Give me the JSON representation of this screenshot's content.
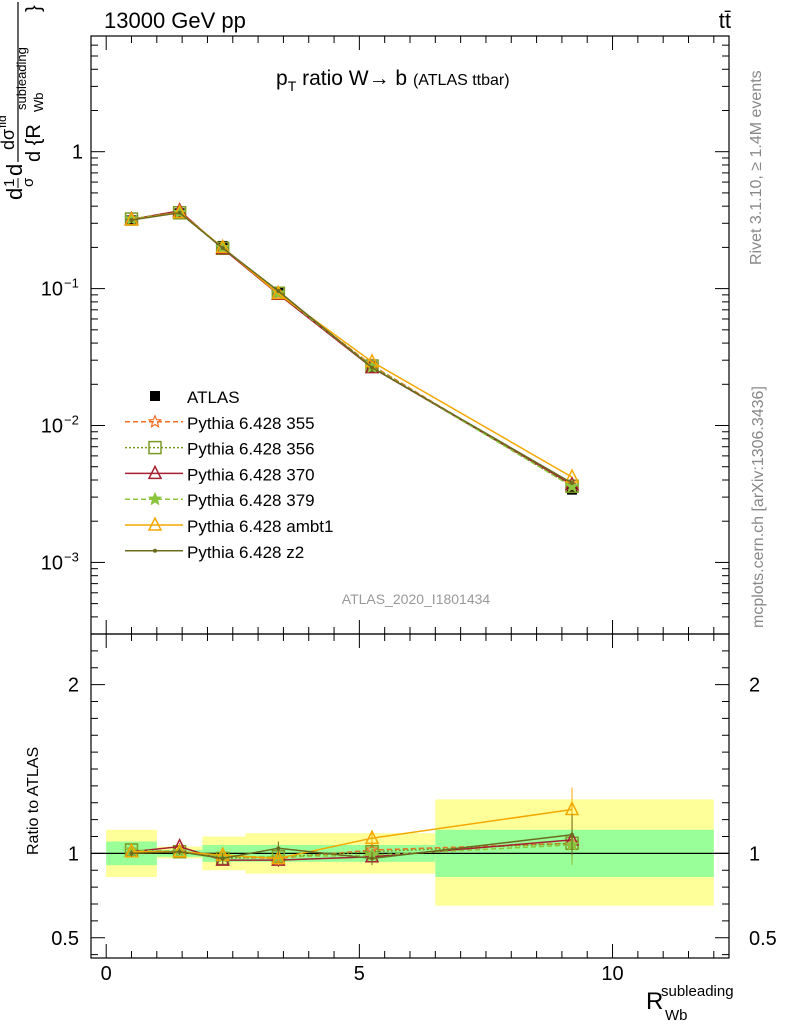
{
  "header": {
    "left": "13000 GeV pp",
    "right": "tt̄"
  },
  "side_labels": {
    "rivet": "Rivet 3.1.10, ≥ 1.4M events",
    "mcplots": "mcplots.cern.ch [arXiv:1306.3436]"
  },
  "chart_data": [
    {
      "type": "line",
      "title": "p_T ratio W→b (ATLAS ttbar)",
      "title_parts": {
        "p": "p",
        "T": "T",
        "text": " ratio W",
        "arrow": "→",
        "b": " b ",
        "small": "(ATLAS ttbar)"
      },
      "watermark": "ATLAS_2020_I1801434",
      "ylabel": "1/σ dσ/d{R_Wb^subleading}",
      "ylabel_parts": {
        "d1": "d",
        "one": "1",
        "sigma": "σ",
        "d2": "d",
        "dsig": "dσ",
        "fid": "fid",
        "dR": "d {R",
        "Wb": "Wb",
        "sub": "subleading",
        "brace": "}"
      },
      "yscale": "log",
      "ylim": [
        0.0003,
        7
      ],
      "xlim": [
        -0.3,
        12.3
      ],
      "yticks": [
        {
          "v": 1,
          "m": "1",
          "e": ""
        },
        {
          "v": 0.1,
          "m": "10",
          "e": "−1"
        },
        {
          "v": 0.01,
          "m": "10",
          "e": "−2"
        },
        {
          "v": 0.001,
          "m": "10",
          "e": "−3"
        }
      ],
      "x": [
        0.5,
        1.45,
        2.3,
        3.4,
        5.25,
        9.2
      ],
      "series": [
        {
          "name": "ATLAS",
          "color": "#000000",
          "marker": "square-filled",
          "dash": "",
          "values": [
            0.315,
            0.355,
            0.205,
            0.095,
            0.027,
            0.0034
          ]
        },
        {
          "name": "Pythia 6.428 355",
          "color": "#ee6e22",
          "marker": "star-open",
          "dash": "5,3",
          "values": [
            0.323,
            0.36,
            0.199,
            0.092,
            0.0275,
            0.0036
          ]
        },
        {
          "name": "Pythia 6.428 356",
          "color": "#7a9a22",
          "marker": "square-open",
          "dash": "2,2",
          "values": [
            0.322,
            0.358,
            0.197,
            0.0925,
            0.0272,
            0.0036
          ]
        },
        {
          "name": "Pythia 6.428 370",
          "color": "#a52030",
          "marker": "triangle-open",
          "dash": "",
          "values": [
            0.32,
            0.37,
            0.196,
            0.091,
            0.0265,
            0.0037
          ]
        },
        {
          "name": "Pythia 6.428 379",
          "color": "#8cc63f",
          "marker": "star-filled",
          "dash": "5,3",
          "values": [
            0.323,
            0.36,
            0.199,
            0.093,
            0.0268,
            0.0036
          ]
        },
        {
          "name": "Pythia 6.428 ambt1",
          "color": "#f4a800",
          "marker": "triangle-open",
          "dash": "",
          "values": [
            0.318,
            0.36,
            0.2,
            0.092,
            0.0292,
            0.0042
          ]
        },
        {
          "name": "Pythia 6.428 z2",
          "color": "#6b6b20",
          "marker": "dot",
          "dash": "",
          "values": [
            0.317,
            0.358,
            0.198,
            0.096,
            0.0265,
            0.0038
          ]
        }
      ]
    },
    {
      "type": "line",
      "ylabel": "Ratio to ATLAS",
      "xlabel": "R_Wb^subleading",
      "xlabel_parts": {
        "R": "R",
        "Wb": "Wb",
        "sub": "subleading"
      },
      "xlim": [
        -0.3,
        12.3
      ],
      "ylim": [
        0.38,
        2.3
      ],
      "xticks": [
        0,
        5,
        10
      ],
      "xtick_labels": [
        "0",
        "5",
        "10"
      ],
      "yticks": [
        0.5,
        1,
        2
      ],
      "ytick_labels": [
        "0.5",
        "1",
        "2"
      ],
      "bands": [
        {
          "x0": 0.0,
          "x1": 1.0,
          "stat": [
            0.93,
            1.07
          ],
          "total": [
            0.86,
            1.14
          ]
        },
        {
          "x0": 1.0,
          "x1": 1.9,
          "stat": [
            0.98,
            1.02
          ],
          "total": [
            0.97,
            1.04
          ]
        },
        {
          "x0": 1.9,
          "x1": 2.75,
          "stat": [
            0.95,
            1.05
          ],
          "total": [
            0.9,
            1.1
          ]
        },
        {
          "x0": 2.75,
          "x1": 6.5,
          "stat": [
            0.95,
            1.05
          ],
          "total": [
            0.88,
            1.12
          ]
        },
        {
          "x0": 6.5,
          "x1": 12.0,
          "stat": [
            0.86,
            1.14
          ],
          "total": [
            0.69,
            1.32
          ]
        }
      ],
      "x": [
        0.5,
        1.45,
        2.3,
        3.4,
        5.25,
        9.2
      ],
      "series": [
        {
          "name": "Pythia 6.428 355",
          "color": "#ee6e22",
          "marker": "star-open",
          "dash": "5,3",
          "values": [
            1.02,
            1.01,
            0.98,
            0.97,
            1.02,
            1.06
          ],
          "err": [
            0.02,
            0.02,
            0.03,
            0.04,
            0.04,
            0.12
          ]
        },
        {
          "name": "Pythia 6.428 356",
          "color": "#7a9a22",
          "marker": "square-open",
          "dash": "2,2",
          "values": [
            1.02,
            1.01,
            0.97,
            0.98,
            1.01,
            1.06
          ],
          "err": [
            0.02,
            0.02,
            0.03,
            0.04,
            0.04,
            0.12
          ]
        },
        {
          "name": "Pythia 6.428 370",
          "color": "#a52030",
          "marker": "triangle-open",
          "dash": "",
          "values": [
            1.01,
            1.04,
            0.96,
            0.96,
            0.98,
            1.08
          ],
          "err": [
            0.02,
            0.02,
            0.03,
            0.04,
            0.04,
            0.12
          ]
        },
        {
          "name": "Pythia 6.428 379",
          "color": "#8cc63f",
          "marker": "star-filled",
          "dash": "5,3",
          "values": [
            1.02,
            1.01,
            0.98,
            0.98,
            0.99,
            1.05
          ],
          "err": [
            0.02,
            0.02,
            0.03,
            0.04,
            0.04,
            0.12
          ]
        },
        {
          "name": "Pythia 6.428 ambt1",
          "color": "#f4a800",
          "marker": "triangle-open",
          "dash": "",
          "values": [
            1.01,
            1.01,
            0.99,
            0.97,
            1.09,
            1.26
          ],
          "err": [
            0.02,
            0.02,
            0.03,
            0.04,
            0.04,
            0.13
          ]
        },
        {
          "name": "Pythia 6.428 z2",
          "color": "#6b6b20",
          "marker": "dot",
          "dash": "",
          "values": [
            1.0,
            1.01,
            0.97,
            1.03,
            0.97,
            1.11
          ],
          "err": [
            0.02,
            0.02,
            0.03,
            0.04,
            0.04,
            0.12
          ]
        }
      ]
    }
  ]
}
